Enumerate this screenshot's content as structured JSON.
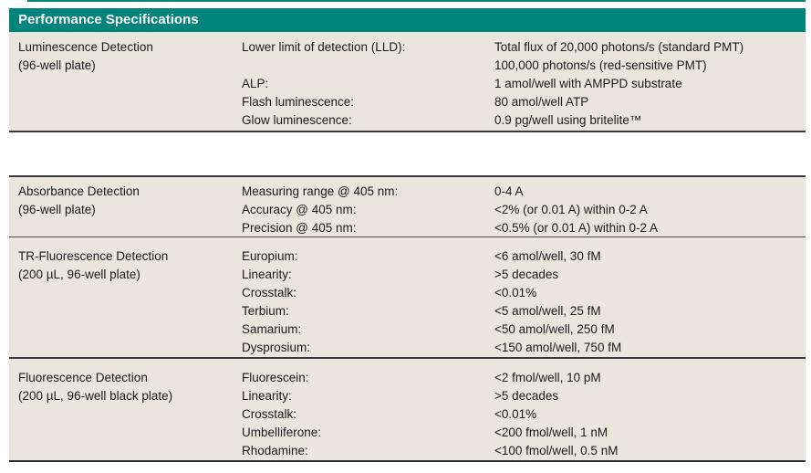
{
  "header": {
    "title": "Performance Specifications"
  },
  "colors": {
    "accent_teal": "#00847b",
    "header_text": "#ffffff",
    "table_background": "#eae6de",
    "rule_dark": "#3a3a3a",
    "body_text": "#1b1b1b"
  },
  "sections": [
    {
      "title": "Luminescence Detection",
      "subtitle": "(96-well plate)",
      "rows": [
        {
          "param": "Lower limit of detection (LLD):",
          "value": "Total flux of 20,000 photons/s (standard PMT)"
        },
        {
          "param": "",
          "value": "100,000 photons/s (red-sensitive PMT)"
        },
        {
          "param": "ALP:",
          "value": "1 amol/well with AMPPD substrate"
        },
        {
          "param": "Flash luminescence:",
          "value": "80 amol/well ATP"
        },
        {
          "param": "Glow luminescence:",
          "value": "0.9 pg/well using britelite™"
        }
      ]
    },
    {
      "gap": true
    },
    {
      "title": "Absorbance Detection",
      "subtitle": "(96-well plate)",
      "rows": [
        {
          "param": "Measuring range @ 405 nm:",
          "value": "0-4 A"
        },
        {
          "param": "Accuracy @ 405 nm:",
          "value": "<2% (or 0.01 A) within 0-2 A"
        },
        {
          "param": "Precision @ 405 nm:",
          "value": "<0.5% (or 0.01 A) within 0-2 A"
        }
      ]
    },
    {
      "title": "TR-Fluorescence Detection",
      "subtitle": "(200 µL, 96-well plate)",
      "rows": [
        {
          "param": "Europium:",
          "value": "<6 amol/well, 30 fM"
        },
        {
          "param": "Linearity:",
          "value": ">5 decades"
        },
        {
          "param": "Crosstalk:",
          "value": "<0.01%"
        },
        {
          "param": "Terbium:",
          "value": "<5 amol/well, 25 fM"
        },
        {
          "param": "Samarium:",
          "value": "<50 amol/well, 250 fM"
        },
        {
          "param": "Dysprosium:",
          "value": "<150 amol/well, 750 fM"
        }
      ]
    },
    {
      "title": "Fluorescence Detection",
      "subtitle": "(200 µL, 96-well black plate)",
      "rows": [
        {
          "param": "Fluorescein:",
          "value": "<2 fmol/well, 10 pM"
        },
        {
          "param": "Linearity:",
          "value": ">5 decades"
        },
        {
          "param": "Crosstalk:",
          "value": "<0.01%"
        },
        {
          "param": "Umbelliferone:",
          "value": "<200 fmol/well, 1 nM"
        },
        {
          "param": "Rhodamine:",
          "value": "<100 fmol/well, 0.5 nM"
        }
      ]
    }
  ]
}
